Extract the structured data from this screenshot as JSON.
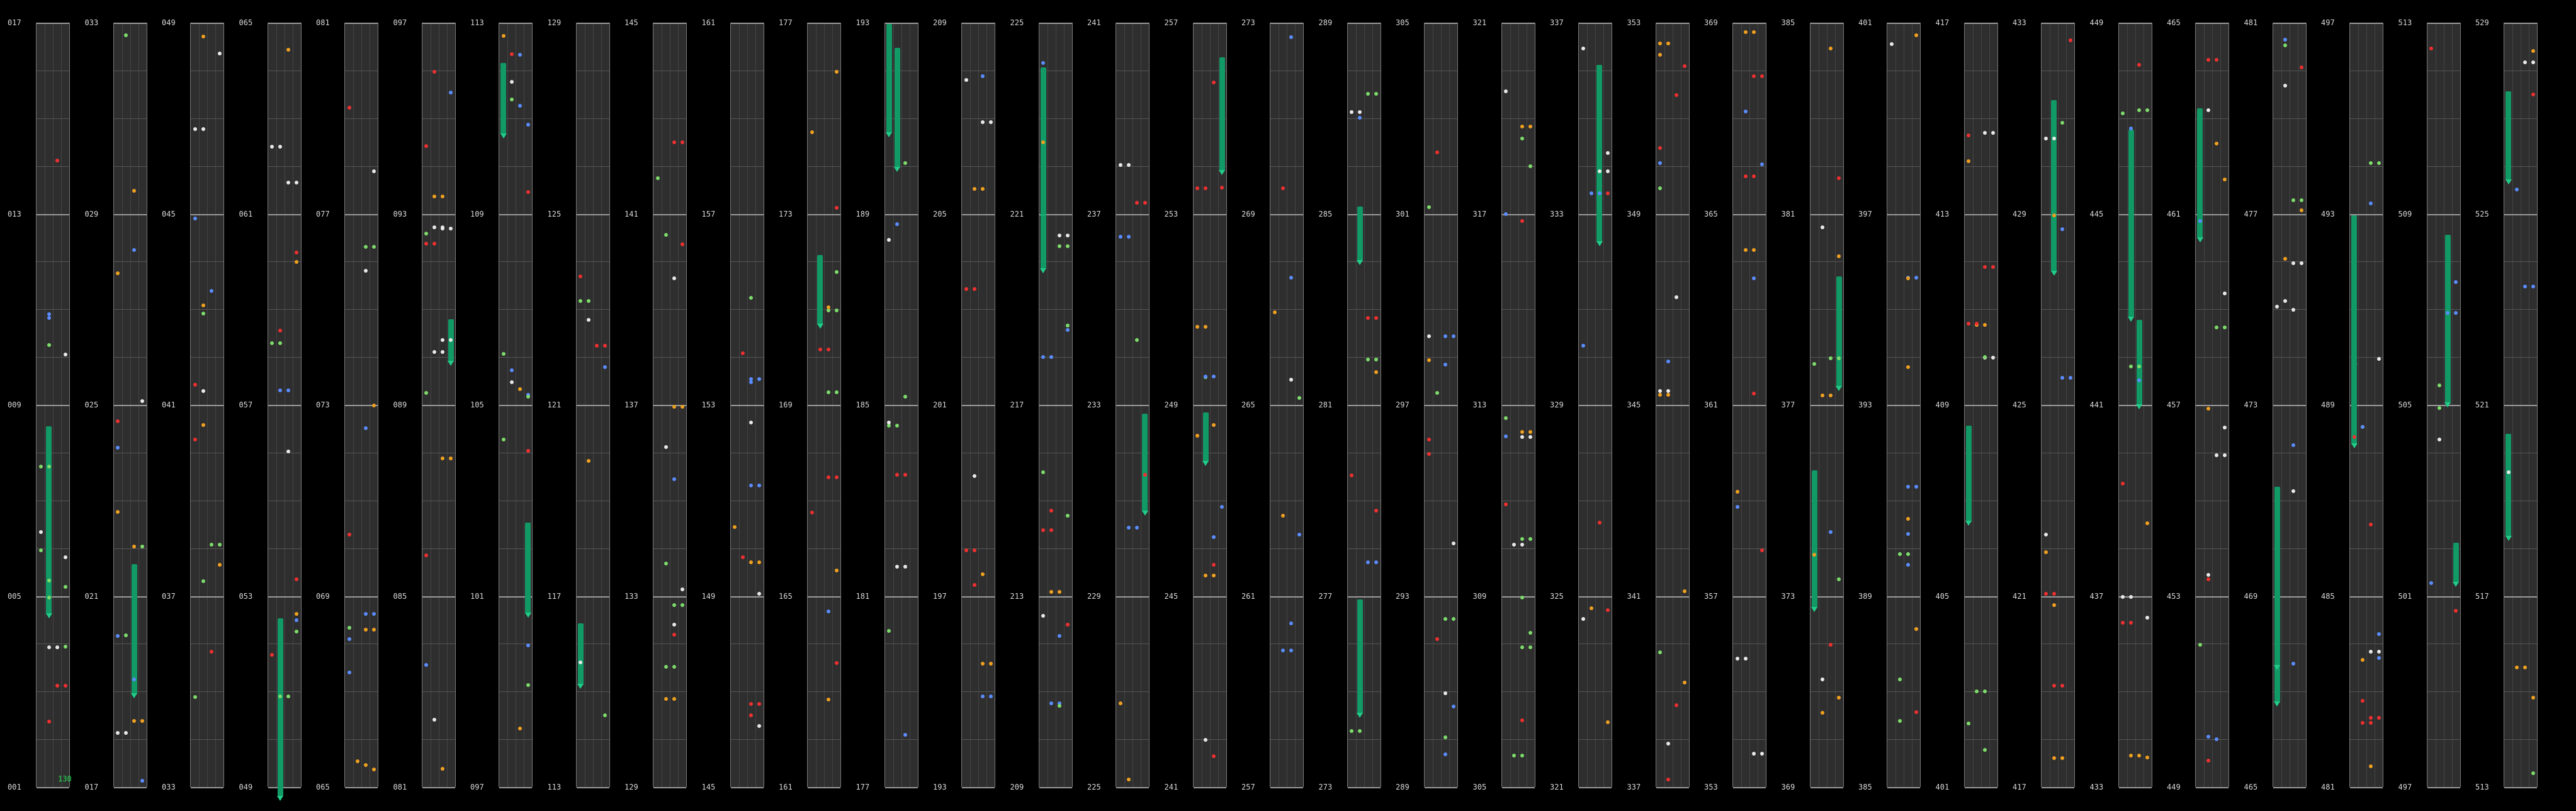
{
  "counter": "130",
  "columns": [
    {
      "labels": [
        "017",
        "013",
        "009",
        "005",
        "001"
      ]
    },
    {
      "labels": [
        "033",
        "029",
        "025",
        "021",
        "017"
      ]
    },
    {
      "labels": [
        "049",
        "045",
        "041",
        "037",
        "033"
      ]
    },
    {
      "labels": [
        "065",
        "061",
        "057",
        "053",
        "049"
      ]
    },
    {
      "labels": [
        "081",
        "077",
        "073",
        "069",
        "065"
      ]
    },
    {
      "labels": [
        "097",
        "093",
        "089",
        "085",
        "081"
      ]
    },
    {
      "labels": [
        "113",
        "109",
        "105",
        "101",
        "097"
      ]
    },
    {
      "labels": [
        "129",
        "125",
        "121",
        "117",
        "113"
      ]
    },
    {
      "labels": [
        "145",
        "141",
        "137",
        "133",
        "129"
      ]
    },
    {
      "labels": [
        "161",
        "157",
        "153",
        "149",
        "145"
      ]
    },
    {
      "labels": [
        "177",
        "173",
        "169",
        "165",
        "161"
      ]
    },
    {
      "labels": [
        "193",
        "189",
        "185",
        "181",
        "177"
      ]
    },
    {
      "labels": [
        "209",
        "205",
        "201",
        "197",
        "193"
      ]
    },
    {
      "labels": [
        "225",
        "221",
        "217",
        "213",
        "209"
      ]
    },
    {
      "labels": [
        "241",
        "237",
        "233",
        "229",
        "225"
      ]
    },
    {
      "labels": [
        "257",
        "253",
        "249",
        "245",
        "241"
      ]
    },
    {
      "labels": [
        "273",
        "269",
        "265",
        "261",
        "257"
      ]
    },
    {
      "labels": [
        "289",
        "285",
        "281",
        "277",
        "273"
      ]
    },
    {
      "labels": [
        "305",
        "301",
        "297",
        "293",
        "289"
      ]
    },
    {
      "labels": [
        "321",
        "317",
        "313",
        "309",
        "305"
      ]
    },
    {
      "labels": [
        "337",
        "333",
        "329",
        "325",
        "321"
      ]
    },
    {
      "labels": [
        "353",
        "349",
        "345",
        "341",
        "337"
      ]
    },
    {
      "labels": [
        "369",
        "365",
        "361",
        "357",
        "353"
      ]
    },
    {
      "labels": [
        "385",
        "381",
        "377",
        "373",
        "369"
      ]
    },
    {
      "labels": [
        "401",
        "397",
        "393",
        "389",
        "385"
      ]
    },
    {
      "labels": [
        "417",
        "413",
        "409",
        "405",
        "401"
      ]
    },
    {
      "labels": [
        "433",
        "429",
        "425",
        "421",
        "417"
      ]
    },
    {
      "labels": [
        "449",
        "445",
        "441",
        "437",
        "433"
      ]
    },
    {
      "labels": [
        "465",
        "461",
        "457",
        "453",
        "449"
      ]
    },
    {
      "labels": [
        "481",
        "477",
        "473",
        "469",
        "465"
      ]
    },
    {
      "labels": [
        "497",
        "493",
        "489",
        "485",
        "481"
      ]
    },
    {
      "labels": [
        "513",
        "509",
        "505",
        "501",
        "497"
      ]
    },
    {
      "labels": [
        "529",
        "525",
        "521",
        "517",
        "513"
      ]
    }
  ],
  "note_colors": {
    "white": "#e8e8e8",
    "green": "#7ddc6a",
    "blue": "#5b8cff",
    "orange": "#f0a020",
    "red": "#ee3030",
    "hold": "#119966"
  }
}
